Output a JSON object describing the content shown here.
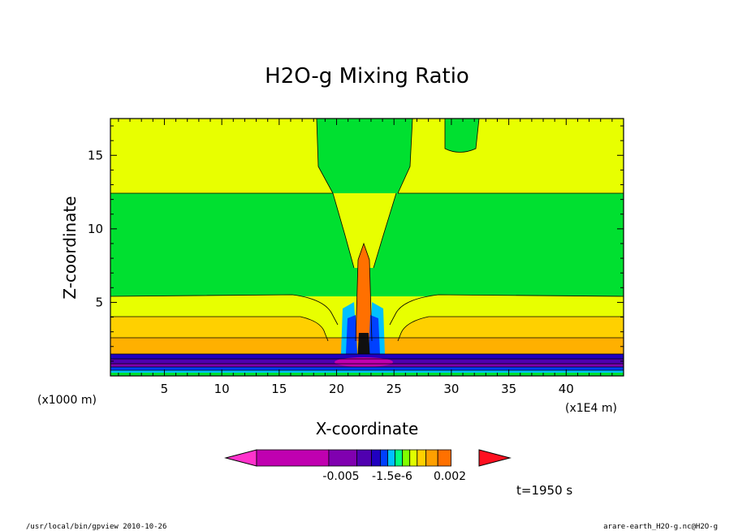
{
  "chart_data": {
    "type": "contour",
    "title": "H2O-g Mixing Ratio",
    "xlabel": "X-coordinate",
    "ylabel": "Z-coordinate",
    "x_unit": "(x1E4 m)",
    "y_unit": "(x1000 m)",
    "x_ticks": [
      5,
      10,
      15,
      20,
      25,
      30,
      35,
      40
    ],
    "y_ticks": [
      5,
      10,
      15
    ],
    "xlim": [
      0.3,
      45
    ],
    "ylim": [
      0,
      17.5
    ],
    "colorbar": {
      "colors": [
        "#ff33cc",
        "#c000b0",
        "#8000b0",
        "#5000b0",
        "#2000c0",
        "#0040ff",
        "#00c0ff",
        "#00ff80",
        "#80ff00",
        "#e0ff00",
        "#ffd000",
        "#ffa000",
        "#ff7000",
        "#ff1020"
      ],
      "tick_labels": [
        "-0.005",
        "-1.5e-6",
        "0.002"
      ]
    },
    "time_label": "t=1950 s",
    "footer_left": "/usr/local/bin/gpview   2010-10-26",
    "footer_right": "arare-earth_H2O-g.nc@H2O-g"
  }
}
